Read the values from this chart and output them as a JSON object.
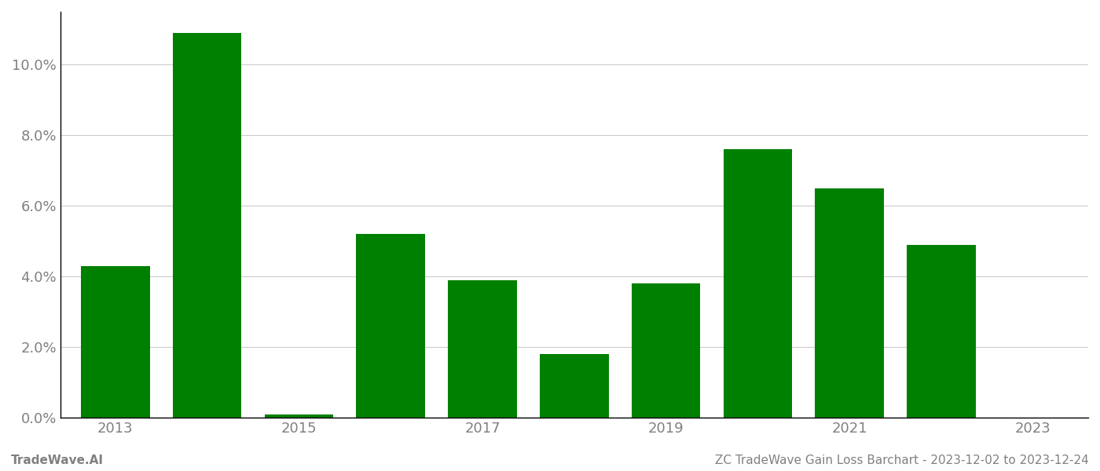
{
  "years": [
    2013,
    2014,
    2015,
    2016,
    2017,
    2018,
    2019,
    2020,
    2021,
    2022,
    2023
  ],
  "values": [
    0.043,
    0.109,
    0.001,
    0.052,
    0.039,
    0.018,
    0.038,
    0.076,
    0.065,
    0.049,
    0.0
  ],
  "bar_color": "#008000",
  "background_color": "#ffffff",
  "grid_color": "#cccccc",
  "ylabel_color": "#808080",
  "xlabel_color": "#808080",
  "ylim": [
    0,
    0.115
  ],
  "yticks": [
    0.0,
    0.02,
    0.04,
    0.06,
    0.08,
    0.1
  ],
  "xtick_years": [
    2013,
    2015,
    2017,
    2019,
    2021,
    2023
  ],
  "footer_left": "TradeWave.AI",
  "footer_right": "ZC TradeWave Gain Loss Barchart - 2023-12-02 to 2023-12-24",
  "footer_color": "#808080",
  "footer_fontsize": 11
}
